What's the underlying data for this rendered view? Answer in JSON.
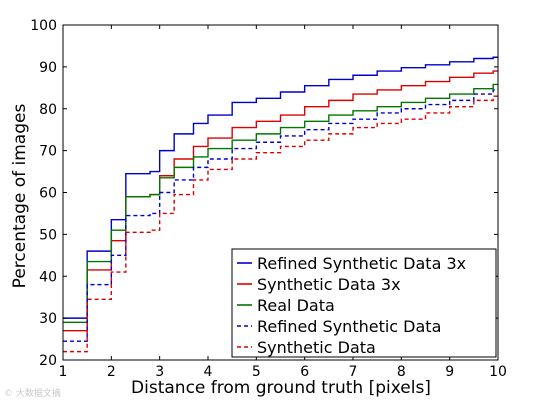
{
  "chart_data": {
    "type": "line",
    "title": "",
    "xlabel": "Distance from ground truth [pixels]",
    "ylabel": "Percentage of images",
    "xlim": [
      1,
      10
    ],
    "ylim": [
      20,
      100
    ],
    "xticks": [
      1,
      2,
      3,
      4,
      5,
      6,
      7,
      8,
      9,
      10
    ],
    "yticks": [
      20,
      30,
      40,
      50,
      60,
      70,
      80,
      90,
      100
    ],
    "grid": false,
    "legend_position": "lower-right",
    "x": [
      1.0,
      1.5,
      2.0,
      2.3,
      2.8,
      3.0,
      3.3,
      3.7,
      4.0,
      4.5,
      5.0,
      5.5,
      6.0,
      6.5,
      7.0,
      7.5,
      8.0,
      8.5,
      9.0,
      9.5,
      9.9
    ],
    "series": [
      {
        "name": "Refined Synthetic Data 3x",
        "color": "#0000cc",
        "style": "solid",
        "values": [
          30,
          46,
          53.5,
          64.5,
          65,
          70,
          74,
          76.5,
          78.5,
          81.5,
          82.5,
          84,
          85.5,
          87,
          88,
          89,
          89.8,
          90.5,
          91.2,
          92,
          92.3
        ]
      },
      {
        "name": "Synthetic Data 3x",
        "color": "#dd0000",
        "style": "solid",
        "values": [
          27,
          41.5,
          48.5,
          59,
          59.5,
          64,
          68,
          71,
          73,
          75.5,
          77,
          78.5,
          80.5,
          82,
          83.5,
          84.5,
          85.5,
          86.5,
          87.5,
          88.5,
          89
        ]
      },
      {
        "name": "Real Data",
        "color": "#007700",
        "style": "solid",
        "values": [
          29,
          43.5,
          51,
          59,
          59.5,
          63.5,
          66,
          68.5,
          70.5,
          72.5,
          74,
          75.5,
          77,
          78.5,
          79.5,
          80.5,
          81.5,
          82.5,
          83.5,
          84.8,
          85.8
        ]
      },
      {
        "name": "Refined Synthetic Data",
        "color": "#0000cc",
        "style": "dashed",
        "values": [
          24.5,
          38,
          45,
          54.5,
          55,
          60,
          63,
          66,
          68,
          70.5,
          72,
          73.5,
          75,
          76.5,
          77.5,
          79,
          80,
          81,
          82,
          83.5,
          84.5
        ]
      },
      {
        "name": "Synthetic Data",
        "color": "#dd0000",
        "style": "dashed",
        "values": [
          22,
          34.5,
          41,
          50.5,
          51,
          55,
          59.5,
          63,
          65.5,
          68,
          69.5,
          71,
          72.5,
          74,
          75.5,
          76.5,
          77.5,
          79,
          80.5,
          82,
          83
        ]
      }
    ]
  },
  "watermark": "© 大数据文摘"
}
